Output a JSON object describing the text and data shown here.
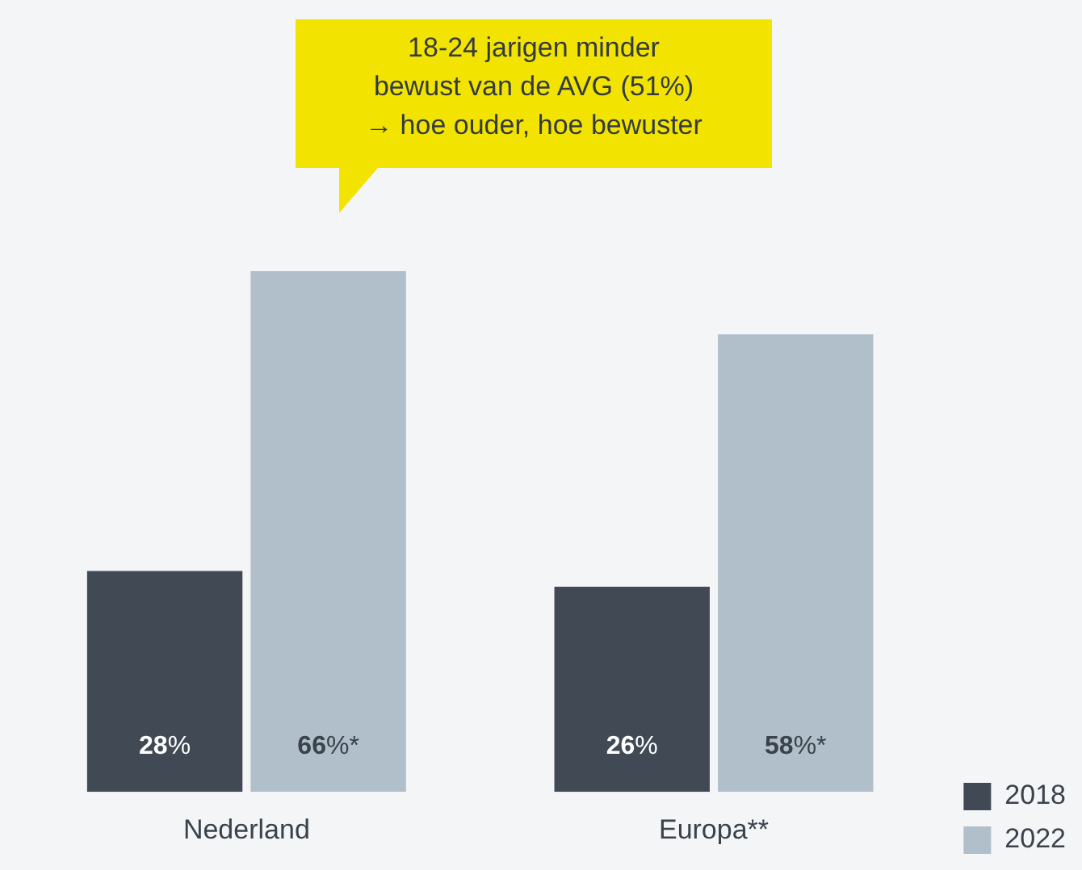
{
  "chart_data": {
    "type": "bar",
    "categories": [
      "Nederland",
      "Europa**"
    ],
    "series": [
      {
        "name": "2018",
        "color": "#414a54",
        "values": [
          28,
          26
        ],
        "value_labels": [
          "28%",
          "26%"
        ]
      },
      {
        "name": "2022",
        "color": "#b0bfca",
        "values": [
          66,
          58
        ],
        "value_labels": [
          "66%*",
          "58%*"
        ]
      }
    ],
    "ylim": [
      0,
      66
    ],
    "legend": "bottom right",
    "grid": false,
    "annotations": [
      "18-24 jarigen minder\nbewust van de AVG (51%)\n→ hoe ouder, hoe bewuster"
    ]
  }
}
